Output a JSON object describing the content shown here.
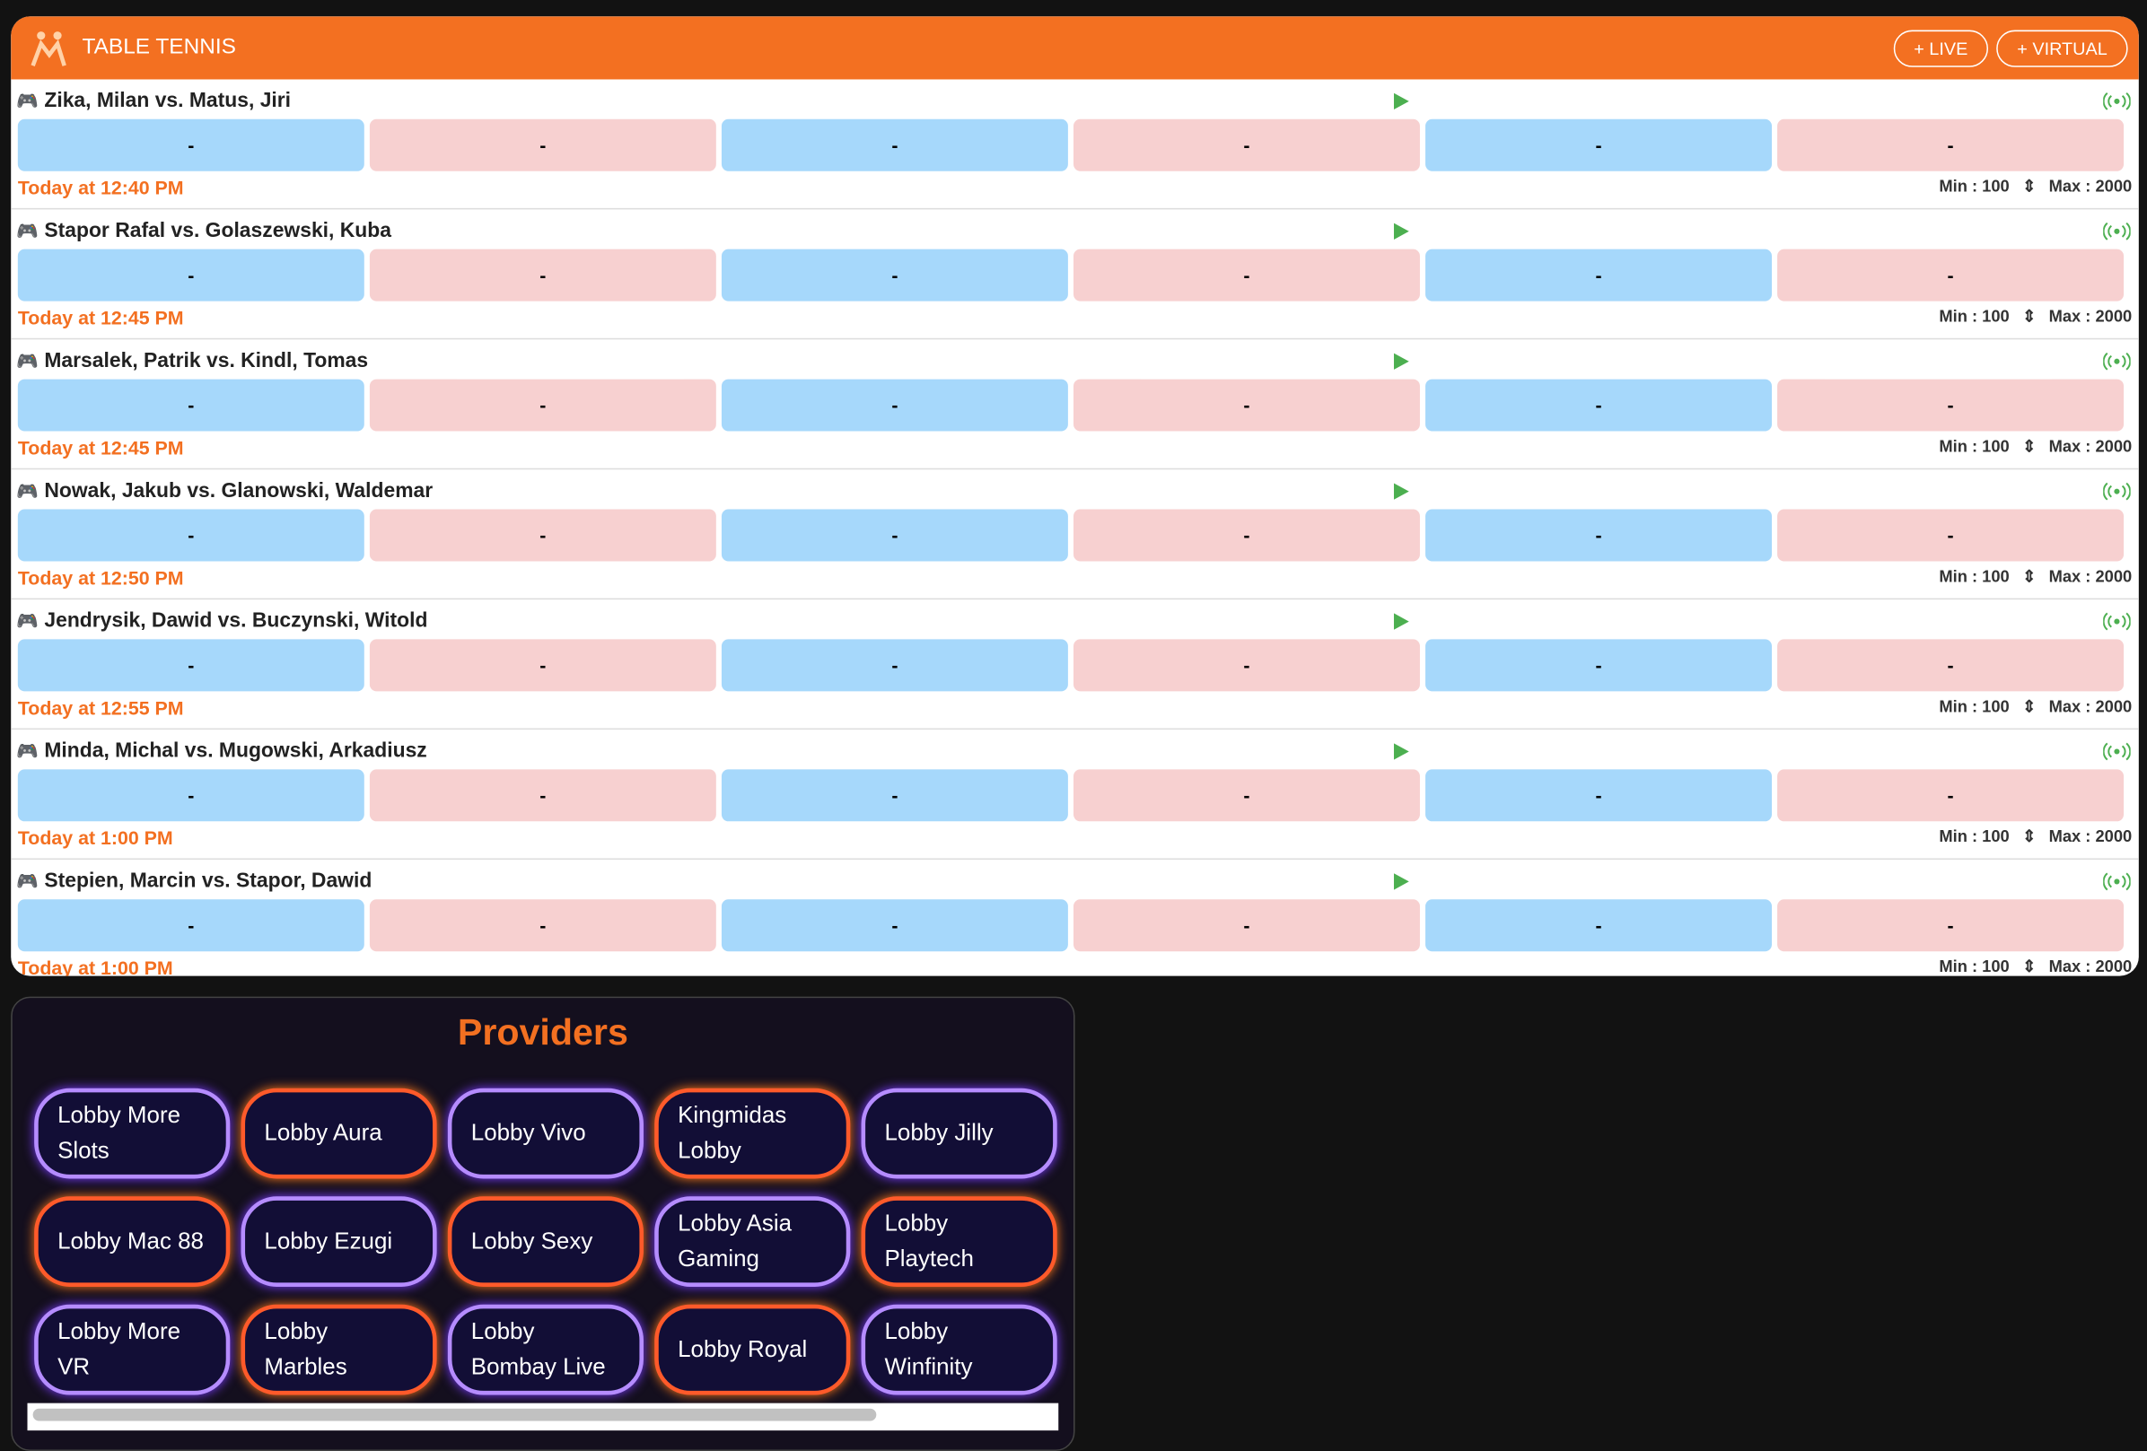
{
  "header": {
    "title": "TABLE TENNIS",
    "buttons": [
      "LIVE",
      "VIRTUAL"
    ]
  },
  "matches": [
    {
      "name": "Zika, Milan vs. Matus, Jiri",
      "odds": [
        "-",
        "-",
        "-",
        "-",
        "-",
        "-"
      ],
      "time": "Today at 12:40 PM",
      "min": "Min : 100",
      "max": "Max : 2000"
    },
    {
      "name": "Stapor Rafal vs. Golaszewski, Kuba",
      "odds": [
        "-",
        "-",
        "-",
        "-",
        "-",
        "-"
      ],
      "time": "Today at 12:45 PM",
      "min": "Min : 100",
      "max": "Max : 2000"
    },
    {
      "name": "Marsalek, Patrik vs. Kindl, Tomas",
      "odds": [
        "-",
        "-",
        "-",
        "-",
        "-",
        "-"
      ],
      "time": "Today at 12:45 PM",
      "min": "Min : 100",
      "max": "Max : 2000"
    },
    {
      "name": "Nowak, Jakub vs. Glanowski, Waldemar",
      "odds": [
        "-",
        "-",
        "-",
        "-",
        "-",
        "-"
      ],
      "time": "Today at 12:50 PM",
      "min": "Min : 100",
      "max": "Max : 2000"
    },
    {
      "name": "Jendrysik, Dawid vs. Buczynski, Witold",
      "odds": [
        "-",
        "-",
        "-",
        "-",
        "-",
        "-"
      ],
      "time": "Today at 12:55 PM",
      "min": "Min : 100",
      "max": "Max : 2000"
    },
    {
      "name": "Minda, Michal vs. Mugowski, Arkadiusz",
      "odds": [
        "-",
        "-",
        "-",
        "-",
        "-",
        "-"
      ],
      "time": "Today at 1:00 PM",
      "min": "Min : 100",
      "max": "Max : 2000"
    },
    {
      "name": "Stepien, Marcin vs. Stapor, Dawid",
      "odds": [
        "-",
        "-",
        "-",
        "-",
        "-",
        "-"
      ],
      "time": "Today at 1:00 PM",
      "min": "Min : 100",
      "max": "Max : 2000"
    }
  ],
  "providers": {
    "title": "Providers",
    "items": [
      "Lobby More Slots",
      "Lobby Aura",
      "Lobby Vivo",
      "Kingmidas Lobby",
      "Lobby Jilly",
      "Lobby Mac 88",
      "Lobby Ezugi",
      "Lobby Sexy",
      "Lobby Asia Gaming",
      "Lobby Playtech",
      "Lobby More VR",
      "Lobby Marbles",
      "Lobby Bombay Live",
      "Lobby Royal",
      "Lobby Winfinity"
    ]
  }
}
